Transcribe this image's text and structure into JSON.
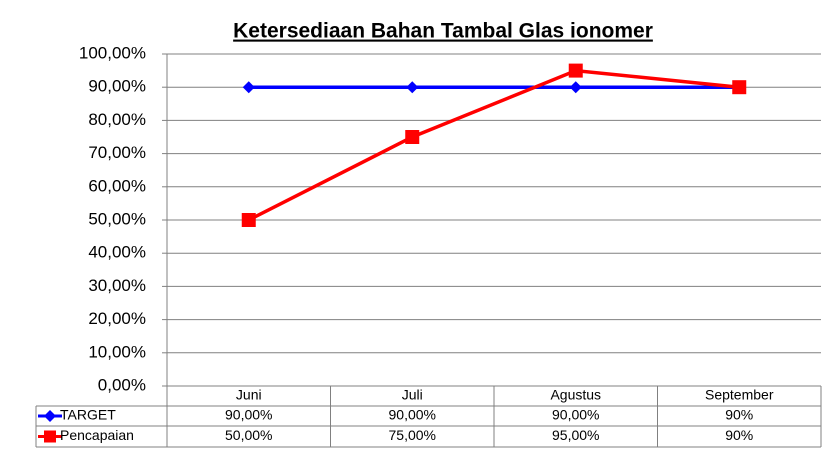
{
  "chart_data": {
    "type": "line",
    "title": "Ketersediaan Bahan Tambal  Glas ionomer",
    "categories": [
      "Juni",
      "Juli",
      "Agustus",
      "September"
    ],
    "series": [
      {
        "name": "TARGET",
        "color": "#0000ff",
        "marker": "diamond",
        "values": [
          90,
          90,
          90,
          90
        ],
        "value_labels": [
          "90,00%",
          "90,00%",
          "90,00%",
          "90%"
        ]
      },
      {
        "name": "Pencapaian",
        "color": "#ff0000",
        "marker": "square",
        "values": [
          50,
          75,
          95,
          90
        ],
        "value_labels": [
          "50,00%",
          "75,00%",
          "95,00%",
          "90%"
        ]
      }
    ],
    "ylim": [
      0,
      100
    ],
    "yticks": [
      {
        "value": 0,
        "label": "0,00%"
      },
      {
        "value": 10,
        "label": "10,00%"
      },
      {
        "value": 20,
        "label": "20,00%"
      },
      {
        "value": 30,
        "label": "30,00%"
      },
      {
        "value": 40,
        "label": "40,00%"
      },
      {
        "value": 50,
        "label": "50,00%"
      },
      {
        "value": 60,
        "label": "60,00%"
      },
      {
        "value": 70,
        "label": "70,00%"
      },
      {
        "value": 80,
        "label": "80,00%"
      },
      {
        "value": 90,
        "label": "90,00%"
      },
      {
        "value": 100,
        "label": "100,00%"
      }
    ],
    "grid": true,
    "data_table": true
  }
}
